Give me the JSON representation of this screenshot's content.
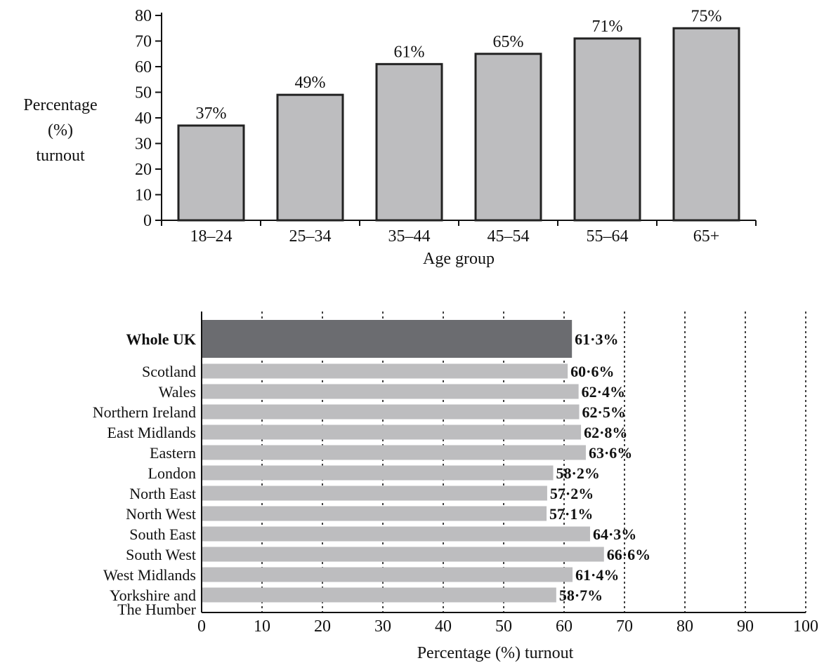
{
  "chart_data": [
    {
      "type": "bar",
      "orientation": "vertical",
      "categories": [
        "18–24",
        "25–34",
        "35–44",
        "45–54",
        "55–64",
        "65+"
      ],
      "values": [
        37,
        49,
        61,
        65,
        71,
        75
      ],
      "data_labels": [
        "37%",
        "49%",
        "61%",
        "65%",
        "71%",
        "75%"
      ],
      "xlabel": "Age group",
      "ylabel_lines": [
        "Percentage",
        "(%)",
        "turnout"
      ],
      "ylim": [
        0,
        80
      ],
      "yticks": [
        "0",
        "10",
        "20",
        "30",
        "40",
        "50",
        "60",
        "70",
        "80"
      ],
      "grid": false,
      "colors": {
        "bar": "#bdbdbf",
        "outline": "#222222"
      }
    },
    {
      "type": "bar",
      "orientation": "horizontal",
      "categories": [
        "Whole UK",
        "Scotland",
        "Wales",
        "Northern Ireland",
        "East Midlands",
        "Eastern",
        "London",
        "North East",
        "North West",
        "South East",
        "South West",
        "West Midlands",
        "Yorkshire and The Humber"
      ],
      "category_lines": [
        [
          "Whole UK"
        ],
        [
          "Scotland"
        ],
        [
          "Wales"
        ],
        [
          "Northern Ireland"
        ],
        [
          "East Midlands"
        ],
        [
          "Eastern"
        ],
        [
          "London"
        ],
        [
          "North East"
        ],
        [
          "North West"
        ],
        [
          "South East"
        ],
        [
          "South West"
        ],
        [
          "West Midlands"
        ],
        [
          "Yorkshire and",
          "The Humber"
        ]
      ],
      "values": [
        61.3,
        60.6,
        62.4,
        62.5,
        62.8,
        63.6,
        58.2,
        57.2,
        57.1,
        64.3,
        66.6,
        61.4,
        58.7
      ],
      "data_labels": [
        "61·3%",
        "60·6%",
        "62·4%",
        "62·5%",
        "62·8%",
        "63·6%",
        "58·2%",
        "57·2%",
        "57·1%",
        "64·3%",
        "66·6%",
        "61·4%",
        "58·7%"
      ],
      "xlabel": "Percentage (%) turnout",
      "xlim": [
        0,
        100
      ],
      "xticks": [
        "0",
        "10",
        "20",
        "30",
        "40",
        "50",
        "60",
        "70",
        "80",
        "90",
        "100"
      ],
      "grid": "vertical dotted",
      "colors": {
        "highlight": "#6b6c70",
        "bar": "#bdbdbf"
      }
    }
  ]
}
